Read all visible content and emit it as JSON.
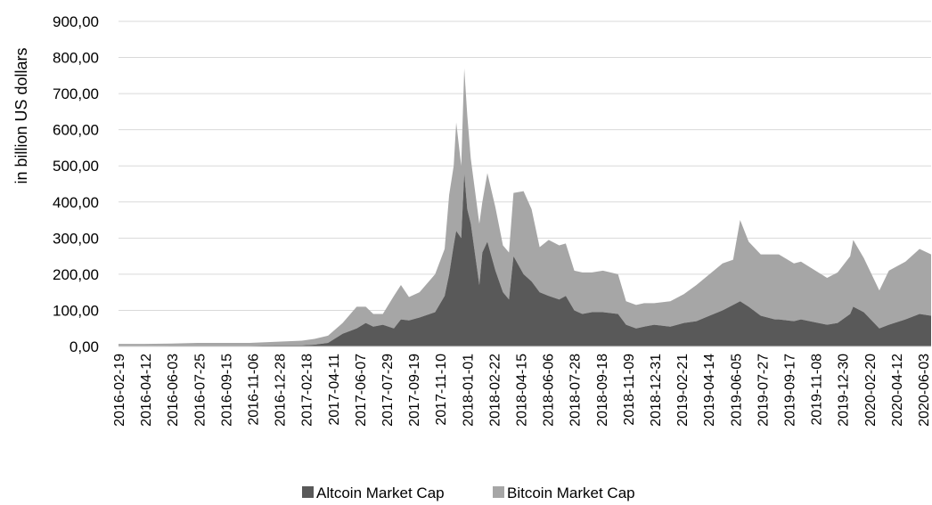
{
  "chart_data": {
    "type": "area",
    "stacked": true,
    "ylabel": "in billion US dollars",
    "xlabel": "",
    "title": "",
    "ylim": [
      0,
      900
    ],
    "yticks": [
      "0,00",
      "100,00",
      "200,00",
      "300,00",
      "400,00",
      "500,00",
      "600,00",
      "700,00",
      "800,00",
      "900,00"
    ],
    "yticks_values": [
      0,
      100,
      200,
      300,
      400,
      500,
      600,
      700,
      800,
      900
    ],
    "xticks": [
      "2016-02-19",
      "2016-04-12",
      "2016-06-03",
      "2016-07-25",
      "2016-09-15",
      "2016-11-06",
      "2016-12-28",
      "2017-02-18",
      "2017-04-11",
      "2017-06-07",
      "2017-07-29",
      "2017-09-19",
      "2017-11-10",
      "2018-01-01",
      "2018-02-22",
      "2018-04-15",
      "2018-06-06",
      "2018-07-28",
      "2018-09-18",
      "2018-11-09",
      "2018-12-31",
      "2019-02-21",
      "2019-04-14",
      "2019-06-05",
      "2019-07-27",
      "2019-09-17",
      "2019-11-08",
      "2019-12-30",
      "2020-02-20",
      "2020-04-12",
      "2020-06-03"
    ],
    "grid": true,
    "legend_position": "bottom",
    "colors": {
      "altcoin": "#595959",
      "bitcoin": "#a6a6a6",
      "grid": "#d9d9d9"
    },
    "x": [
      "2016-02-19",
      "2016-04-12",
      "2016-06-03",
      "2016-07-25",
      "2016-09-15",
      "2016-11-06",
      "2016-12-28",
      "2017-02-18",
      "2017-03-15",
      "2017-04-11",
      "2017-05-10",
      "2017-06-07",
      "2017-06-25",
      "2017-07-10",
      "2017-07-29",
      "2017-08-20",
      "2017-09-03",
      "2017-09-19",
      "2017-10-10",
      "2017-11-10",
      "2017-11-29",
      "2017-12-08",
      "2017-12-17",
      "2017-12-22",
      "2018-01-01",
      "2018-01-07",
      "2018-01-13",
      "2018-01-20",
      "2018-02-06",
      "2018-02-12",
      "2018-02-22",
      "2018-03-10",
      "2018-03-25",
      "2018-04-06",
      "2018-04-15",
      "2018-05-05",
      "2018-05-21",
      "2018-06-06",
      "2018-06-24",
      "2018-07-15",
      "2018-07-28",
      "2018-08-14",
      "2018-08-30",
      "2018-09-18",
      "2018-10-10",
      "2018-11-09",
      "2018-11-25",
      "2018-12-15",
      "2018-12-31",
      "2019-01-20",
      "2019-02-21",
      "2019-03-20",
      "2019-04-14",
      "2019-05-10",
      "2019-06-05",
      "2019-06-26",
      "2019-07-10",
      "2019-07-27",
      "2019-08-20",
      "2019-09-17",
      "2019-09-25",
      "2019-10-25",
      "2019-11-08",
      "2019-12-30",
      "2020-01-20",
      "2020-02-14",
      "2020-02-20",
      "2020-03-12",
      "2020-04-12",
      "2020-05-01",
      "2020-06-03",
      "2020-07-01",
      "2020-07-24"
    ],
    "series": [
      {
        "name": "Altcoin Market Cap",
        "values": [
          1,
          1,
          2,
          2,
          2,
          2,
          3,
          3,
          5,
          10,
          35,
          50,
          65,
          55,
          60,
          50,
          75,
          72,
          80,
          95,
          140,
          200,
          280,
          320,
          300,
          480,
          380,
          340,
          170,
          260,
          290,
          210,
          150,
          130,
          250,
          200,
          180,
          150,
          140,
          130,
          140,
          100,
          90,
          95,
          95,
          90,
          60,
          50,
          55,
          60,
          55,
          65,
          70,
          85,
          100,
          115,
          125,
          110,
          85,
          75,
          75,
          70,
          75,
          60,
          65,
          90,
          110,
          95,
          50,
          60,
          75,
          90,
          85
        ]
      },
      {
        "name": "Bitcoin Market Cap",
        "values": [
          6,
          6,
          6,
          8,
          8,
          8,
          10,
          13,
          16,
          20,
          30,
          60,
          45,
          35,
          30,
          90,
          95,
          65,
          70,
          105,
          130,
          220,
          220,
          300,
          200,
          290,
          260,
          180,
          170,
          140,
          190,
          175,
          130,
          130,
          175,
          230,
          200,
          125,
          155,
          150,
          145,
          110,
          115,
          110,
          115,
          110,
          65,
          65,
          65,
          60,
          70,
          80,
          100,
          115,
          130,
          125,
          225,
          180,
          170,
          180,
          180,
          160,
          160,
          130,
          140,
          160,
          185,
          150,
          105,
          150,
          160,
          180,
          170
        ]
      }
    ]
  },
  "legend": {
    "items": [
      {
        "label": "Altcoin Market Cap",
        "color": "#595959"
      },
      {
        "label": "Bitcoin Market Cap",
        "color": "#a6a6a6"
      }
    ]
  }
}
